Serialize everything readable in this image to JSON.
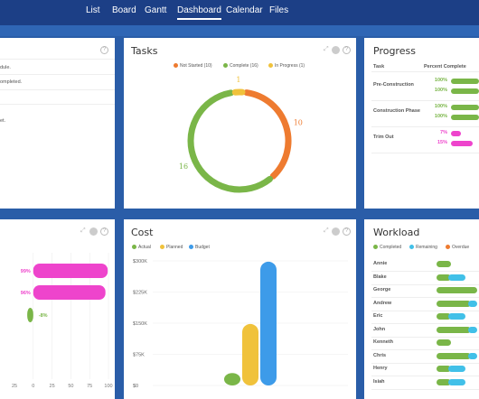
{
  "nav": {
    "items": [
      {
        "label": "List",
        "active": false
      },
      {
        "label": "Board",
        "active": false
      },
      {
        "label": "Gantt",
        "active": false
      },
      {
        "label": "Dashboard",
        "active": true
      },
      {
        "label": "Calendar",
        "active": false
      },
      {
        "label": "Files",
        "active": false
      }
    ]
  },
  "left_top": {
    "help": "?",
    "lines": [
      "dule.",
      "ompleted.",
      "",
      "et."
    ]
  },
  "tasks": {
    "title": "Tasks",
    "help": "?",
    "chart_data": {
      "type": "pie",
      "categories": [
        "Not Started (10)",
        "Complete (16)",
        "In Progress (1)"
      ],
      "values": [
        10,
        16,
        1
      ],
      "legend_labels": [
        "Not Started (10)",
        "Complete (16)",
        "In Progress (1)"
      ],
      "slice_labels": [
        "10",
        "16",
        "1"
      ],
      "colors": [
        "#ee7b30",
        "#7ab648",
        "#f0c23b"
      ],
      "legend": "top"
    }
  },
  "progress": {
    "title": "Progress",
    "col_task": "Task",
    "col_percent": "Percent Complete",
    "rows": [
      {
        "task": "Pre-Construction",
        "values": [
          {
            "label": "100%",
            "color": "#7ab648",
            "frac": 1.0
          },
          {
            "label": "100%",
            "color": "#7ab648",
            "frac": 1.0
          }
        ]
      },
      {
        "task": "Construction Phase",
        "values": [
          {
            "label": "100%",
            "color": "#7ab648",
            "frac": 1.0
          },
          {
            "label": "100%",
            "color": "#7ab648",
            "frac": 1.0
          }
        ]
      },
      {
        "task": "Trim Out",
        "values": [
          {
            "label": "7%",
            "color": "#ee44cc",
            "frac": 0.07
          },
          {
            "label": "15%",
            "color": "#ee44cc",
            "frac": 0.15
          }
        ]
      }
    ]
  },
  "left_bottom": {
    "help": "?",
    "chart_data": {
      "type": "bar",
      "orientation": "horizontal",
      "values": [
        99,
        96,
        -8
      ],
      "data_labels": [
        "99%",
        "96%",
        "-8%"
      ],
      "colors": [
        "#ee44cc",
        "#ee44cc",
        "#7ab648"
      ],
      "x_ticks": [
        "0",
        "25",
        "50",
        "75",
        "100"
      ],
      "first_tick": "25",
      "xlim": [
        -25,
        100
      ]
    }
  },
  "cost": {
    "title": "Cost",
    "help": "?",
    "chart_data": {
      "type": "bar",
      "series": [
        {
          "name": "Actual",
          "color": "#7ab648",
          "value": 30
        },
        {
          "name": "Planned",
          "color": "#f0c23b",
          "value": 148
        },
        {
          "name": "Budget",
          "color": "#3d9be9",
          "value": 298
        }
      ],
      "y_ticks": [
        "$0",
        "$75K",
        "$150K",
        "$225K",
        "$300K"
      ],
      "ylim": [
        0,
        300
      ],
      "unit": "K"
    }
  },
  "workload": {
    "title": "Workload",
    "legend": [
      {
        "label": "Completed",
        "color": "#7ab648"
      },
      {
        "label": "Remaining",
        "color": "#41c0e8"
      },
      {
        "label": "Overdue",
        "color": "#ee7b30"
      }
    ],
    "rows": [
      {
        "name": "Annie",
        "completed": 0.35,
        "remaining": 0.0
      },
      {
        "name": "Blake",
        "completed": 0.35,
        "remaining": 0.35
      },
      {
        "name": "George",
        "completed": 1.0,
        "remaining": 0.0
      },
      {
        "name": "Andrew",
        "completed": 0.85,
        "remaining": 0.15
      },
      {
        "name": "Eric",
        "completed": 0.35,
        "remaining": 0.35
      },
      {
        "name": "John",
        "completed": 0.85,
        "remaining": 0.15
      },
      {
        "name": "Kenneth",
        "completed": 0.35,
        "remaining": 0.0
      },
      {
        "name": "Chris",
        "completed": 0.85,
        "remaining": 0.15
      },
      {
        "name": "Henry",
        "completed": 0.35,
        "remaining": 0.35
      },
      {
        "name": "Isiah",
        "completed": 0.35,
        "remaining": 0.35
      }
    ]
  }
}
